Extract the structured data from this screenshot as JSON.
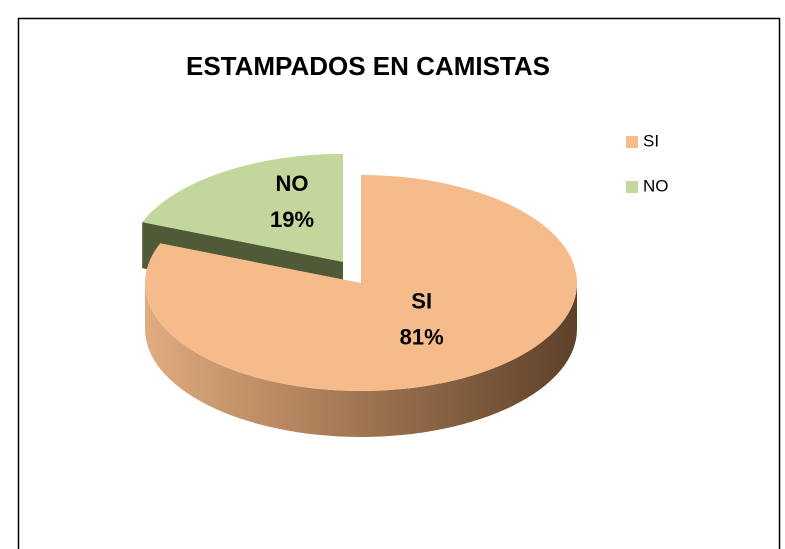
{
  "chart_data": {
    "type": "pie",
    "title": "ESTAMPADOS EN CAMISTAS",
    "categories": [
      "SI",
      "NO"
    ],
    "values": [
      81,
      19
    ],
    "value_labels": [
      "81%",
      "19%"
    ],
    "colors": [
      "#f6bb8a",
      "#c3d69b"
    ],
    "legend": "right"
  }
}
